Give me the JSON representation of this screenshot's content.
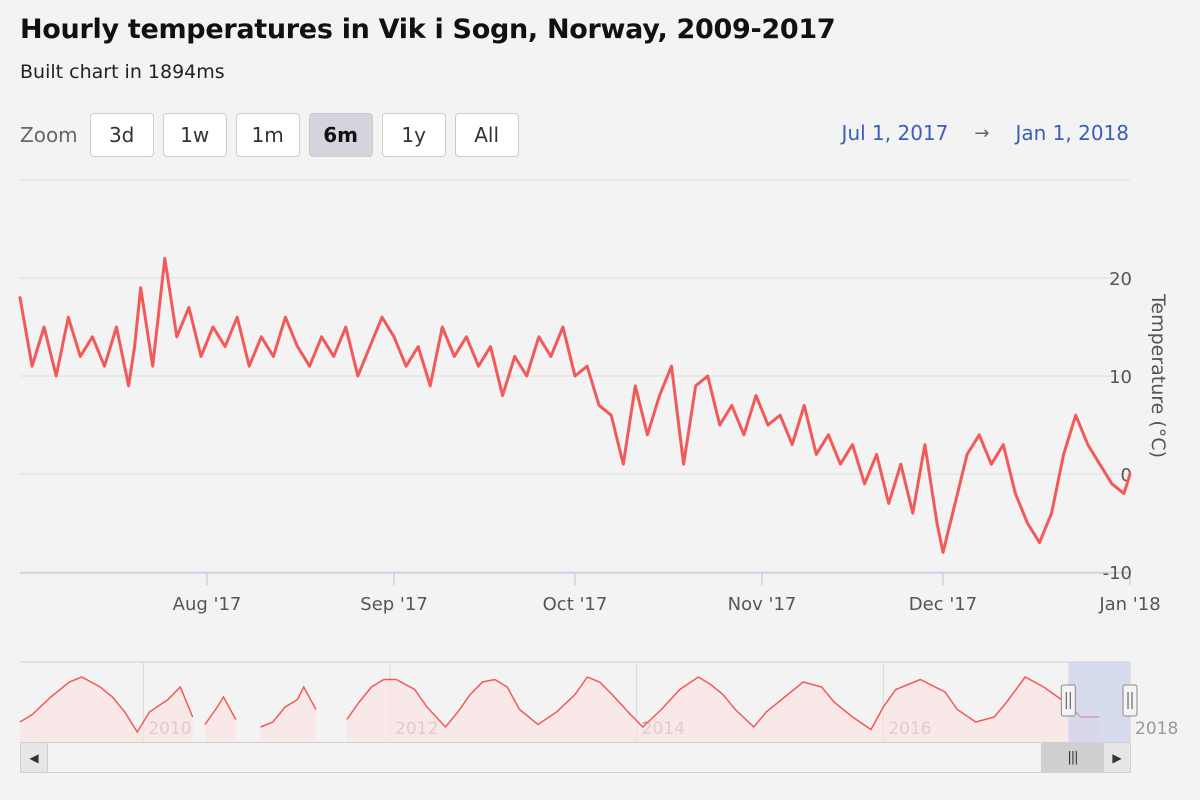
{
  "title": "Hourly temperatures in Vik i Sogn, Norway, 2009-2017",
  "subtitle": "Built chart in 1894ms",
  "zoom": {
    "label": "Zoom",
    "buttons": [
      "3d",
      "1w",
      "1m",
      "6m",
      "1y",
      "All"
    ],
    "selected": "6m"
  },
  "range": {
    "from": "Jul 1, 2017",
    "arrow": "→",
    "to": "Jan 1, 2018"
  },
  "colors": {
    "series": "#f25a5a",
    "navigator_fill": "#f9e3e3",
    "navigator_mask": "#c4cceb",
    "range_text": "#3a5fb8"
  },
  "icons": {
    "scroll_left": "◀",
    "scroll_right": "▶",
    "scroll_thumb": "|||",
    "handle": "||"
  },
  "chart_data": {
    "type": "line",
    "title": "Hourly temperatures in Vik i Sogn, Norway, 2009-2017",
    "ylabel": "Temperature (°C)",
    "ylim": [
      -10,
      30
    ],
    "yticks": [
      -10,
      0,
      10,
      20
    ],
    "xlim": [
      "2017-07-01",
      "2018-01-01"
    ],
    "xticks": [
      {
        "date": "2017-08-01",
        "label": "Aug '17"
      },
      {
        "date": "2017-09-01",
        "label": "Sep '17"
      },
      {
        "date": "2017-10-01",
        "label": "Oct '17"
      },
      {
        "date": "2017-11-01",
        "label": "Nov '17"
      },
      {
        "date": "2017-12-01",
        "label": "Dec '17"
      },
      {
        "date": "2018-01-01",
        "label": "Jan '18"
      }
    ],
    "grid": true,
    "series": [
      {
        "x": [
          "2017-07-01",
          "2017-07-03",
          "2017-07-05",
          "2017-07-07",
          "2017-07-09",
          "2017-07-11",
          "2017-07-13",
          "2017-07-15",
          "2017-07-17",
          "2017-07-19",
          "2017-07-20",
          "2017-07-21",
          "2017-07-23",
          "2017-07-25",
          "2017-07-27",
          "2017-07-29",
          "2017-07-31",
          "2017-08-02",
          "2017-08-04",
          "2017-08-06",
          "2017-08-08",
          "2017-08-10",
          "2017-08-12",
          "2017-08-14",
          "2017-08-16",
          "2017-08-18",
          "2017-08-20",
          "2017-08-22",
          "2017-08-24",
          "2017-08-26",
          "2017-08-28",
          "2017-08-30",
          "2017-09-01",
          "2017-09-03",
          "2017-09-05",
          "2017-09-07",
          "2017-09-09",
          "2017-09-11",
          "2017-09-13",
          "2017-09-15",
          "2017-09-17",
          "2017-09-19",
          "2017-09-21",
          "2017-09-23",
          "2017-09-25",
          "2017-09-27",
          "2017-09-29",
          "2017-10-01",
          "2017-10-03",
          "2017-10-05",
          "2017-10-07",
          "2017-10-09",
          "2017-10-11",
          "2017-10-13",
          "2017-10-15",
          "2017-10-17",
          "2017-10-19",
          "2017-10-21",
          "2017-10-23",
          "2017-10-25",
          "2017-10-27",
          "2017-10-29",
          "2017-10-31",
          "2017-11-02",
          "2017-11-04",
          "2017-11-06",
          "2017-11-08",
          "2017-11-10",
          "2017-11-12",
          "2017-11-14",
          "2017-11-16",
          "2017-11-18",
          "2017-11-20",
          "2017-11-22",
          "2017-11-24",
          "2017-11-26",
          "2017-11-28",
          "2017-11-30",
          "2017-12-01",
          "2017-12-03",
          "2017-12-05",
          "2017-12-07",
          "2017-12-09",
          "2017-12-11",
          "2017-12-13",
          "2017-12-15",
          "2017-12-17",
          "2017-12-19",
          "2017-12-21",
          "2017-12-23",
          "2017-12-25",
          "2017-12-27",
          "2017-12-29",
          "2017-12-31",
          "2018-01-01"
        ],
        "values": [
          18,
          11,
          15,
          10,
          16,
          12,
          14,
          11,
          15,
          9,
          13,
          19,
          11,
          22,
          14,
          17,
          12,
          15,
          13,
          16,
          11,
          14,
          12,
          16,
          13,
          11,
          14,
          12,
          15,
          10,
          13,
          16,
          14,
          11,
          13,
          9,
          15,
          12,
          14,
          11,
          13,
          8,
          12,
          10,
          14,
          12,
          15,
          10,
          11,
          7,
          6,
          1,
          9,
          4,
          8,
          11,
          1,
          9,
          10,
          5,
          7,
          4,
          8,
          5,
          6,
          3,
          7,
          2,
          4,
          1,
          3,
          -1,
          2,
          -3,
          1,
          -4,
          3,
          -5,
          -8,
          -3,
          2,
          4,
          1,
          3,
          -2,
          -5,
          -7,
          -4,
          2,
          6,
          3,
          1,
          -1,
          -2,
          0
        ]
      }
    ],
    "navigator": {
      "xlabels": [
        "2010",
        "2012",
        "2014",
        "2016",
        "2018"
      ],
      "xlim": [
        2009,
        2018
      ],
      "selected_range": [
        "2017-07-01",
        "2018-01-01"
      ],
      "series": {
        "x": [
          2009.0,
          2009.1,
          2009.25,
          2009.4,
          2009.5,
          2009.65,
          2009.75,
          2009.85,
          2009.95,
          2010.05,
          2010.2,
          2010.3,
          2010.4,
          2010.45,
          2010.5,
          2010.6,
          2010.65,
          2010.75,
          2010.85,
          2010.95,
          2011.05,
          2011.15,
          2011.25,
          2011.3,
          2011.4,
          2011.55,
          2011.65,
          2011.75,
          2011.85,
          2011.95,
          2012.05,
          2012.2,
          2012.3,
          2012.45,
          2012.55,
          2012.65,
          2012.75,
          2012.85,
          2012.95,
          2013.05,
          2013.2,
          2013.35,
          2013.5,
          2013.6,
          2013.7,
          2013.8,
          2013.95,
          2014.05,
          2014.2,
          2014.35,
          2014.5,
          2014.6,
          2014.7,
          2014.8,
          2014.95,
          2015.05,
          2015.2,
          2015.35,
          2015.5,
          2015.6,
          2015.75,
          2015.9,
          2016.0,
          2016.1,
          2016.3,
          2016.5,
          2016.6,
          2016.75,
          2016.9,
          2017.0,
          2017.15,
          2017.3,
          2017.5,
          2017.6,
          2017.75,
          2017.9,
          2018.0
        ],
        "values": [
          -2,
          1,
          8,
          14,
          16,
          12,
          8,
          2,
          -6,
          2,
          7,
          12,
          0,
          null,
          -3,
          4,
          8,
          -1,
          null,
          -4,
          -2,
          4,
          7,
          12,
          3,
          null,
          -1,
          6,
          12,
          15,
          15,
          11,
          4,
          -4,
          2,
          9,
          14,
          15,
          12,
          3,
          -3,
          2,
          9,
          16,
          14,
          9,
          1,
          -4,
          3,
          11,
          16,
          13,
          9,
          3,
          -4,
          2,
          8,
          14,
          12,
          6,
          0,
          -5,
          4,
          11,
          15,
          10,
          3,
          -2,
          0,
          6,
          16,
          12,
          5,
          0,
          0,
          null,
          null
        ]
      }
    }
  }
}
